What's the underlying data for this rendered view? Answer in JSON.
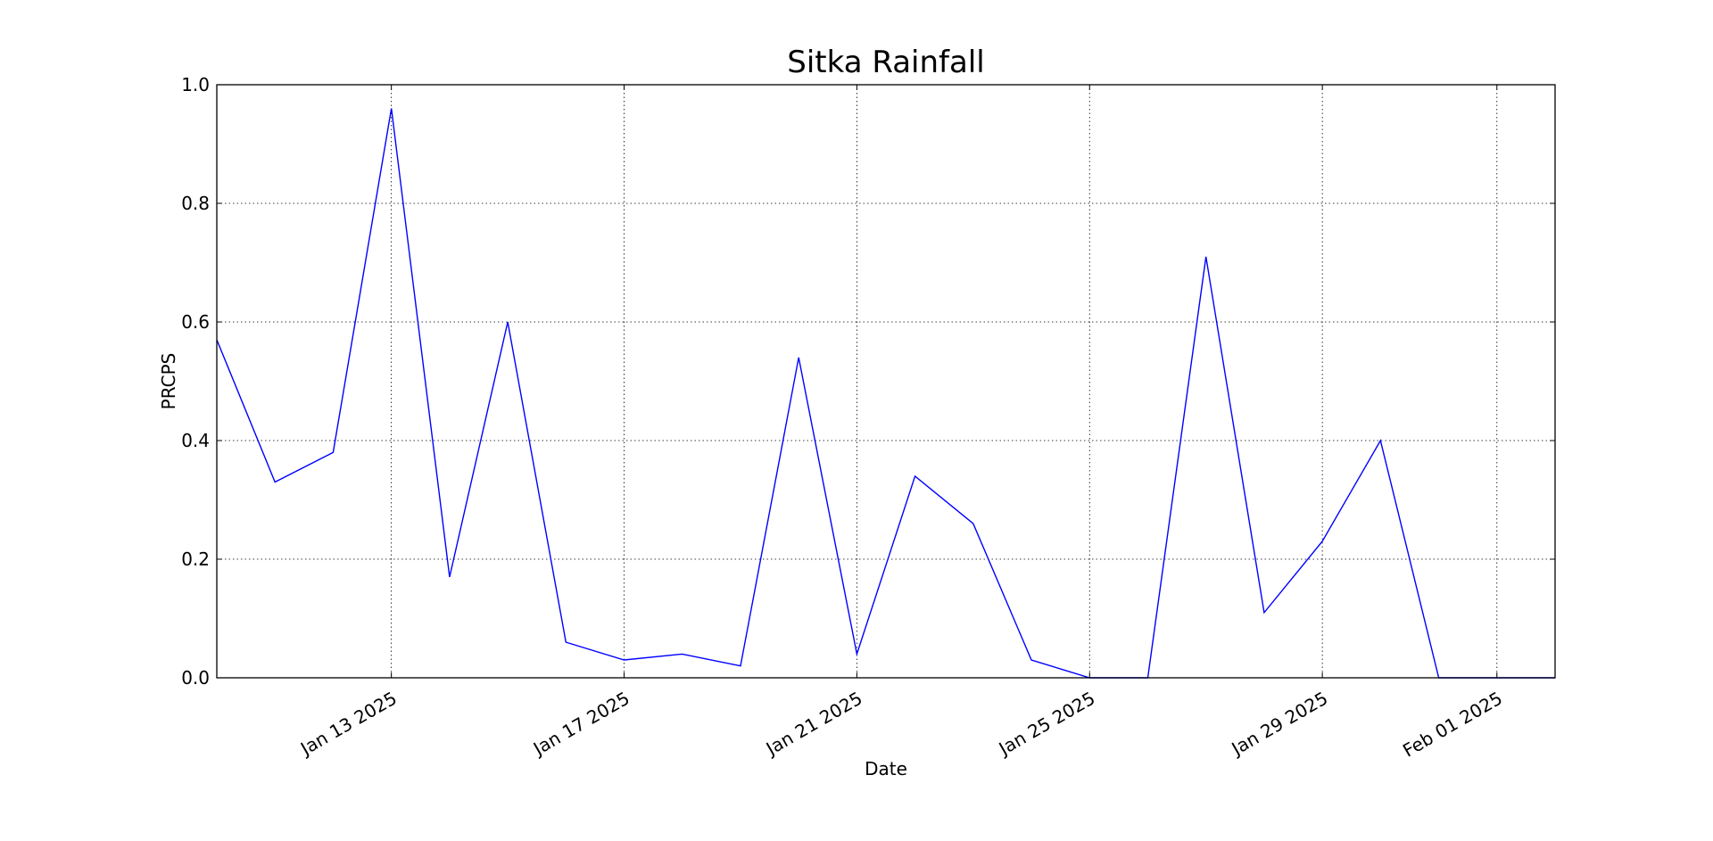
{
  "chart_data": {
    "type": "line",
    "title": "Sitka Rainfall",
    "xlabel": "Date",
    "ylabel": "PRCPS",
    "grid": true,
    "ylim": [
      0,
      1.0
    ],
    "xlim": [
      "2025-01-10",
      "2025-02-02"
    ],
    "y_ticks": [
      0.0,
      0.2,
      0.4,
      0.6,
      0.8,
      1.0
    ],
    "y_tick_labels": [
      "0.0",
      "0.2",
      "0.4",
      "0.6",
      "0.8",
      "1.0"
    ],
    "x_ticks": [
      "2025-01-13",
      "2025-01-17",
      "2025-01-21",
      "2025-01-25",
      "2025-01-29",
      "2025-02-01"
    ],
    "x_tick_labels": [
      "Jan 13 2025",
      "Jan 17 2025",
      "Jan 21 2025",
      "Jan 25 2025",
      "Jan 29 2025",
      "Feb 01 2025"
    ],
    "line_color": "#0000ff",
    "series": [
      {
        "x": [
          "2025-01-10",
          "2025-01-11",
          "2025-01-12",
          "2025-01-13",
          "2025-01-14",
          "2025-01-15",
          "2025-01-16",
          "2025-01-17",
          "2025-01-18",
          "2025-01-19",
          "2025-01-20",
          "2025-01-21",
          "2025-01-22",
          "2025-01-23",
          "2025-01-24",
          "2025-01-25",
          "2025-01-26",
          "2025-01-27",
          "2025-01-28",
          "2025-01-29",
          "2025-01-30",
          "2025-01-31",
          "2025-02-01",
          "2025-02-02"
        ],
        "values": [
          0.57,
          0.33,
          0.38,
          0.96,
          0.17,
          0.6,
          0.06,
          0.03,
          0.04,
          0.02,
          0.54,
          0.04,
          0.34,
          0.26,
          0.03,
          0.0,
          0.0,
          0.71,
          0.11,
          0.23,
          0.4,
          0.0,
          0.0,
          0.0
        ]
      }
    ]
  }
}
